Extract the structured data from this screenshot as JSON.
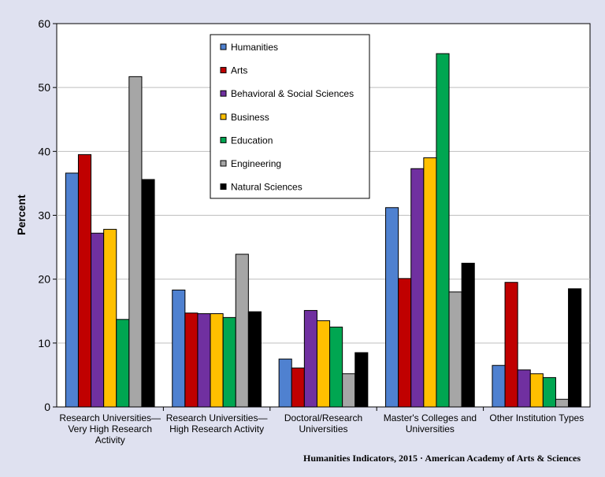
{
  "chart_data": {
    "type": "bar",
    "title": "",
    "xlabel": "",
    "ylabel": "Percent",
    "ylim": [
      0,
      60
    ],
    "yticks": [
      0,
      10,
      20,
      30,
      40,
      50,
      60
    ],
    "grid": true,
    "legend_position": "top-center",
    "categories": [
      [
        "Research Universities—",
        "Very High Research",
        "Activity"
      ],
      [
        "Research Universities—",
        "High Research Activity"
      ],
      [
        "Doctoral/Research",
        "Universities"
      ],
      [
        "Master's Colleges and",
        "Universities"
      ],
      [
        "Other Institution Types"
      ]
    ],
    "series": [
      {
        "name": "Humanities",
        "color": "#4f81d0",
        "values": [
          36.6,
          18.3,
          7.5,
          31.2,
          6.5
        ]
      },
      {
        "name": "Arts",
        "color": "#c00000",
        "values": [
          39.5,
          14.7,
          6.1,
          20.1,
          19.5
        ]
      },
      {
        "name": "Behavioral & Social Sciences",
        "color": "#7030a0",
        "values": [
          27.2,
          14.6,
          15.1,
          37.3,
          5.8
        ]
      },
      {
        "name": "Business",
        "color": "#ffc000",
        "values": [
          27.8,
          14.6,
          13.5,
          39.0,
          5.2
        ]
      },
      {
        "name": "Education",
        "color": "#00a651",
        "values": [
          13.7,
          14.0,
          12.5,
          55.3,
          4.6
        ]
      },
      {
        "name": "Engineering",
        "color": "#a6a6a6",
        "values": [
          51.7,
          23.9,
          5.2,
          18.0,
          1.2
        ]
      },
      {
        "name": "Natural Sciences",
        "color": "#000000",
        "values": [
          35.6,
          14.9,
          8.5,
          22.5,
          18.5
        ]
      }
    ]
  },
  "footer": {
    "credit": "Humanities Indicators, 2015 · American Academy of Arts & Sciences"
  }
}
